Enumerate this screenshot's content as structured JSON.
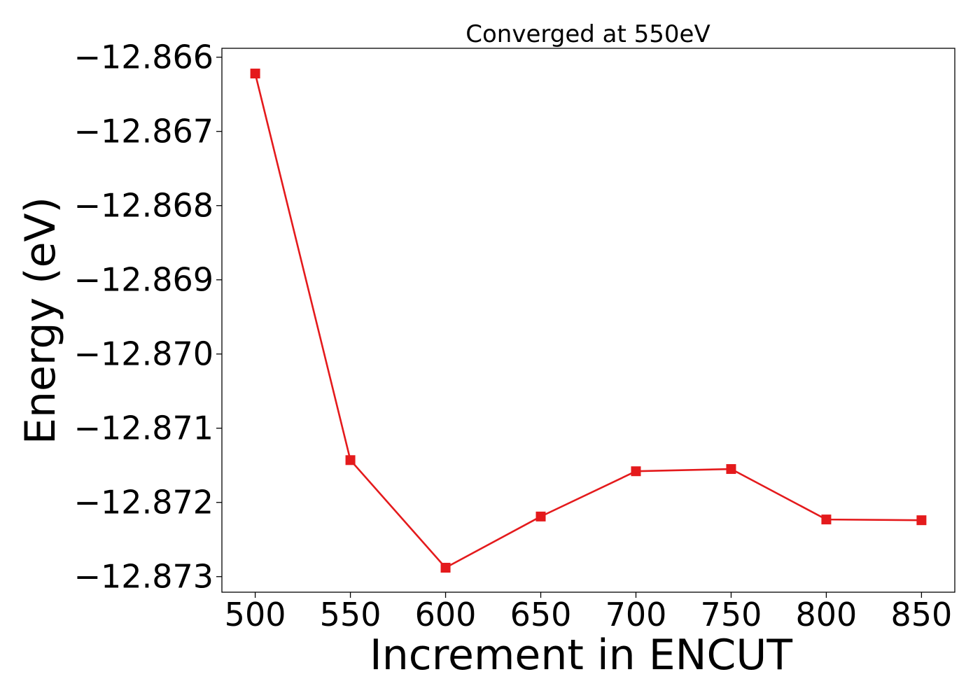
{
  "chart_data": {
    "type": "line",
    "title": "Converged at 550eV",
    "xlabel": "Increment in ENCUT",
    "ylabel": "Energy (eV)",
    "x": [
      500,
      550,
      600,
      650,
      700,
      750,
      800,
      850
    ],
    "series": [
      {
        "values": [
          -12.86622,
          -12.87143,
          -12.87288,
          -12.87219,
          -12.87158,
          -12.87155,
          -12.87223,
          -12.87224
        ],
        "color": "#e41a1c",
        "marker": "square"
      }
    ],
    "xticks": [
      500,
      550,
      600,
      650,
      700,
      750,
      800,
      850
    ],
    "xtick_labels": [
      "500",
      "550",
      "600",
      "650",
      "700",
      "750",
      "800",
      "850"
    ],
    "yticks": [
      -12.866,
      -12.867,
      -12.868,
      -12.869,
      -12.87,
      -12.871,
      -12.872,
      -12.873
    ],
    "ytick_labels": [
      "−12.866",
      "−12.867",
      "−12.868",
      "−12.869",
      "−12.870",
      "−12.871",
      "−12.872",
      "−12.873"
    ],
    "xlim": [
      482.5,
      867.5
    ],
    "ylim": [
      -12.87321,
      -12.86588
    ],
    "grid": false,
    "legend": "none"
  }
}
